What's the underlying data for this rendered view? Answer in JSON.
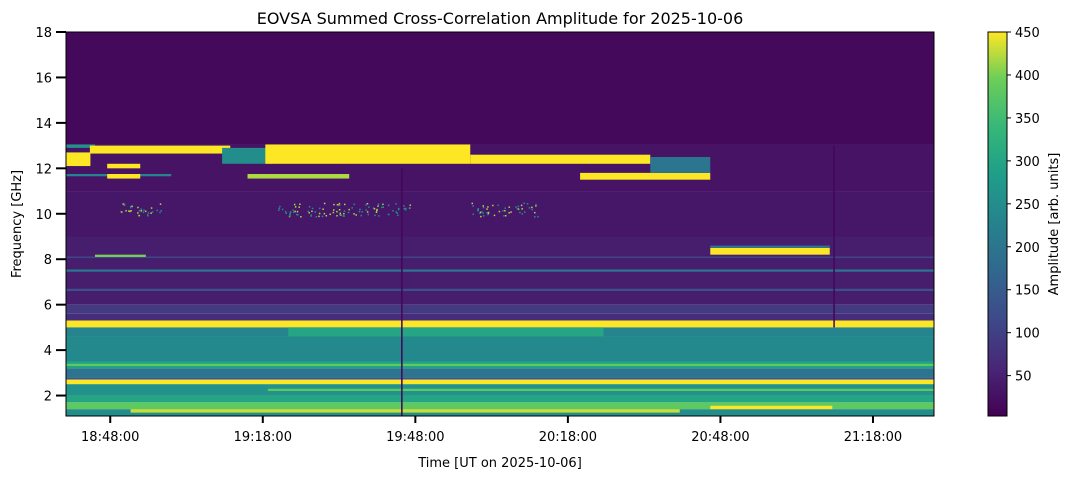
{
  "chart_data": {
    "type": "heatmap",
    "title": "EOVSA Summed Cross-Correlation Amplitude for 2025-10-06",
    "xlabel": "Time [UT on 2025-10-06]",
    "ylabel": "Frequency [GHz]",
    "colorbar_label": "Amplitude [arb. units]",
    "colormap": "viridis",
    "x_units": "minutes after 18:00 UT",
    "xlim": [
      39.3,
      210
    ],
    "ylim": [
      1.1,
      18
    ],
    "clim": [
      3,
      450
    ],
    "x_ticks": [
      48,
      78,
      108,
      138,
      168,
      198
    ],
    "x_tick_labels": [
      "18:48:00",
      "19:18:00",
      "19:48:00",
      "20:18:00",
      "20:48:00",
      "21:18:00"
    ],
    "y_ticks": [
      2,
      4,
      6,
      8,
      10,
      12,
      14,
      16,
      18
    ],
    "y_tick_labels": [
      "2",
      "4",
      "6",
      "8",
      "10",
      "12",
      "14",
      "16",
      "18"
    ],
    "colorbar_ticks": [
      50,
      100,
      150,
      200,
      250,
      300,
      350,
      400,
      450
    ],
    "colorbar_tick_labels": [
      "50",
      "100",
      "150",
      "200",
      "250",
      "300",
      "350",
      "400",
      "450"
    ],
    "background_bands": [
      {
        "f0": 13.05,
        "f1": 18.0,
        "value": 15
      },
      {
        "f0": 11.0,
        "f1": 13.05,
        "value": 30
      },
      {
        "f0": 9.0,
        "f1": 11.0,
        "value": 35
      },
      {
        "f0": 6.0,
        "f1": 9.0,
        "value": 45
      },
      {
        "f0": 7.45,
        "f1": 7.55,
        "value": 200
      },
      {
        "f0": 8.05,
        "f1": 8.12,
        "value": 110
      },
      {
        "f0": 6.6,
        "f1": 6.7,
        "value": 130
      },
      {
        "f0": 5.6,
        "f1": 6.0,
        "value": 90
      },
      {
        "f0": 5.3,
        "f1": 5.6,
        "value": 70
      },
      {
        "f0": 5.0,
        "f1": 5.3,
        "value": 450
      },
      {
        "f0": 4.6,
        "f1": 5.0,
        "value": 230
      },
      {
        "f0": 3.5,
        "f1": 4.6,
        "value": 240
      },
      {
        "f0": 3.2,
        "f1": 3.5,
        "value": 290
      },
      {
        "f0": 2.8,
        "f1": 3.2,
        "value": 200
      },
      {
        "f0": 2.7,
        "f1": 2.8,
        "value": 140
      },
      {
        "f0": 2.5,
        "f1": 2.7,
        "value": 450
      },
      {
        "f0": 2.0,
        "f1": 2.5,
        "value": 260
      },
      {
        "f0": 1.7,
        "f1": 2.0,
        "value": 300
      },
      {
        "f0": 1.4,
        "f1": 1.7,
        "value": 380
      },
      {
        "f0": 1.1,
        "f1": 1.4,
        "value": 250
      }
    ],
    "features": [
      {
        "t0": 39.3,
        "t1": 45.0,
        "f0": 12.9,
        "f1": 13.05,
        "value": 260
      },
      {
        "t0": 44.0,
        "t1": 71.6,
        "f0": 12.65,
        "f1": 13.0,
        "value": 450
      },
      {
        "t0": 39.3,
        "t1": 44.1,
        "f0": 12.1,
        "f1": 12.7,
        "value": 450
      },
      {
        "t0": 39.3,
        "t1": 60.0,
        "f0": 11.65,
        "f1": 11.75,
        "value": 230
      },
      {
        "t0": 47.4,
        "t1": 53.9,
        "f0": 12.0,
        "f1": 12.2,
        "value": 450
      },
      {
        "t0": 47.4,
        "t1": 53.9,
        "f0": 11.55,
        "f1": 11.75,
        "value": 450
      },
      {
        "t0": 70.0,
        "t1": 80.0,
        "f0": 12.2,
        "f1": 12.9,
        "value": 250
      },
      {
        "t0": 78.5,
        "t1": 118.8,
        "f0": 12.2,
        "f1": 13.05,
        "value": 450
      },
      {
        "t0": 75.0,
        "t1": 95.0,
        "f0": 11.55,
        "f1": 11.75,
        "value": 420
      },
      {
        "t0": 118.8,
        "t1": 154.2,
        "f0": 12.2,
        "f1": 12.6,
        "value": 450
      },
      {
        "t0": 140.4,
        "t1": 166.0,
        "f0": 11.5,
        "f1": 11.8,
        "value": 450
      },
      {
        "t0": 154.2,
        "t1": 166.0,
        "f0": 11.8,
        "f1": 12.5,
        "value": 200
      },
      {
        "t0": 166.0,
        "t1": 189.5,
        "f0": 8.2,
        "f1": 8.5,
        "value": 450
      },
      {
        "t0": 166.0,
        "t1": 189.5,
        "f0": 8.5,
        "f1": 8.6,
        "value": 200
      },
      {
        "t0": 45.0,
        "t1": 55.0,
        "f0": 8.1,
        "f1": 8.2,
        "value": 400
      },
      {
        "t0": 83.0,
        "t1": 145.0,
        "f0": 4.6,
        "f1": 5.0,
        "value": 300
      },
      {
        "t0": 39.3,
        "t1": 210.0,
        "f0": 3.3,
        "f1": 3.4,
        "value": 380
      },
      {
        "t0": 52.0,
        "t1": 160.0,
        "f0": 1.25,
        "f1": 1.4,
        "value": 430
      },
      {
        "t0": 166.0,
        "t1": 190.0,
        "f0": 1.4,
        "f1": 1.55,
        "value": 450
      },
      {
        "t0": 79.0,
        "t1": 210.0,
        "f0": 2.2,
        "f1": 2.3,
        "value": 380
      },
      {
        "t0": 105.2,
        "t1": 105.5,
        "f0": 1.1,
        "f1": 12.0,
        "value": 10
      },
      {
        "t0": 190.2,
        "t1": 190.5,
        "f0": 5.0,
        "f1": 13.0,
        "value": 10
      }
    ],
    "sparse_emission_points": {
      "f_range": [
        9.9,
        10.5
      ],
      "t_ranges": [
        [
          50,
          58
        ],
        [
          81,
          107
        ],
        [
          119,
          132
        ]
      ],
      "value": 420
    }
  }
}
